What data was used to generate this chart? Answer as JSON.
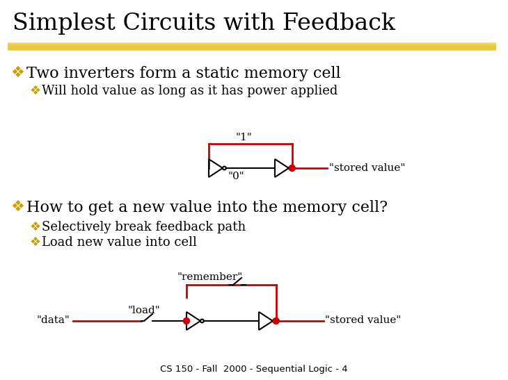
{
  "title": "Simplest Circuits with Feedback",
  "bg_color": "#ffffff",
  "title_color": "#000000",
  "title_fontsize": 24,
  "highlight_color": "#E8C830",
  "bullet_color": "#C8A000",
  "text_color": "#000000",
  "red_color": "#CC0000",
  "circuit_black": "#000000",
  "footer": "CS 150 - Fall  2000 - Sequential Logic - 4",
  "bullet1": "Two inverters form a static memory cell",
  "sub1": "Will hold value as long as it has power applied",
  "bullet2": "How to get a new value into the memory cell?",
  "sub2a": "Selectively break feedback path",
  "sub2b": "Load new value into cell",
  "label_1": "\"1\"",
  "label_0": "\"0\"",
  "label_stored1": "\"stored value\"",
  "label_remember": "\"remember\"",
  "label_load": "\"load\"",
  "label_data": "\"data\"",
  "label_stored2": "\"stored value\""
}
